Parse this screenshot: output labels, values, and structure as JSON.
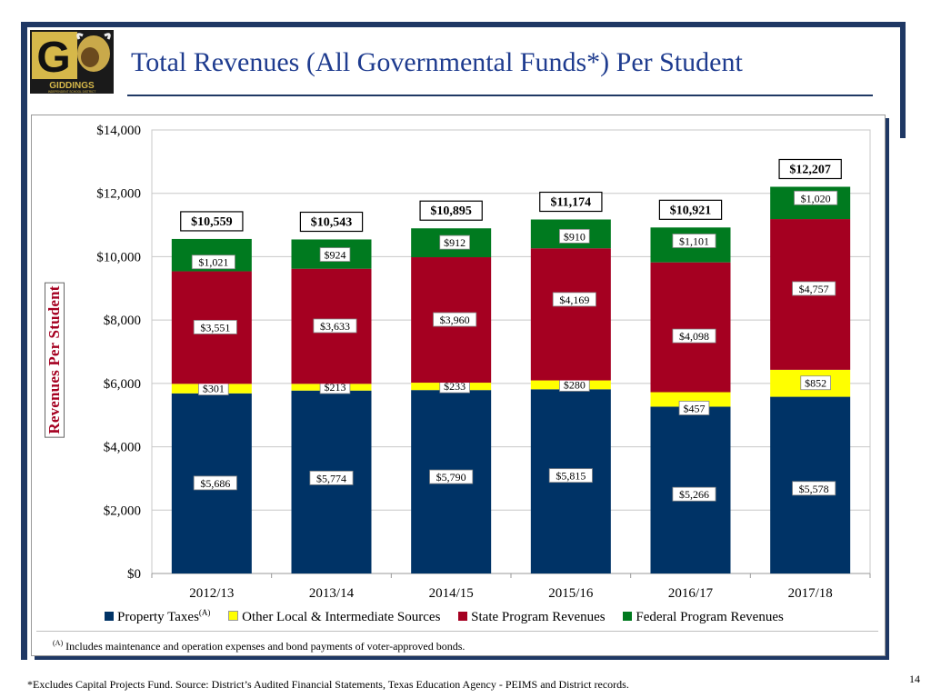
{
  "header": {
    "title": "Total Revenues (All Governmental Funds*) Per Student",
    "logo_text": "GIDDINGS",
    "logo_subtext": "INDEPENDENT SCHOOL DISTRICT",
    "logo_letter": "G"
  },
  "colors": {
    "navy": "#003366",
    "yellow": "#ffff00",
    "crimson": "#a50021",
    "green": "#007a1f",
    "frame": "#1f3864",
    "title": "#1f3c8f"
  },
  "chart_data": {
    "type": "bar",
    "stacked": true,
    "title": "Total Revenues (All Governmental Funds*) Per Student",
    "xlabel": "",
    "ylabel": "Revenues Per Student",
    "ylim": [
      0,
      14000
    ],
    "yticks": [
      0,
      2000,
      4000,
      6000,
      8000,
      10000,
      12000,
      14000
    ],
    "ytick_labels": [
      "$0",
      "$2,000",
      "$4,000",
      "$6,000",
      "$8,000",
      "$10,000",
      "$12,000",
      "$14,000"
    ],
    "grid": "horizontal",
    "legend_position": "bottom",
    "categories": [
      "2012/13",
      "2013/14",
      "2014/15",
      "2015/16",
      "2016/17",
      "2017/18"
    ],
    "series": [
      {
        "name": "Property Taxes",
        "name_sup": "(A)",
        "color": "#003366",
        "values": [
          5686,
          5774,
          5790,
          5815,
          5266,
          5578
        ],
        "labels": [
          "$5,686",
          "$5,774",
          "$5,790",
          "$5,815",
          "$5,266",
          "$5,578"
        ]
      },
      {
        "name": "Other Local & Intermediate Sources",
        "color": "#ffff00",
        "values": [
          301,
          213,
          233,
          280,
          457,
          852
        ],
        "labels": [
          "$301",
          "$213",
          "$233",
          "$280",
          "$457",
          "$852"
        ]
      },
      {
        "name": "State Program Revenues",
        "color": "#a50021",
        "values": [
          3551,
          3633,
          3960,
          4169,
          4098,
          4757
        ],
        "labels": [
          "$3,551",
          "$3,633",
          "$3,960",
          "$4,169",
          "$4,098",
          "$4,757"
        ]
      },
      {
        "name": "Federal Program Revenues",
        "color": "#007a1f",
        "values": [
          1021,
          924,
          912,
          910,
          1101,
          1020
        ],
        "labels": [
          "$1,021",
          "$924",
          "$912",
          "$910",
          "$1,101",
          "$1,020"
        ]
      }
    ],
    "totals": [
      10559,
      10543,
      10895,
      11174,
      10921,
      12207
    ],
    "total_labels": [
      "$10,559",
      "$10,543",
      "$10,895",
      "$11,174",
      "$10,921",
      "$12,207"
    ]
  },
  "notes": {
    "note_marker": "(A)",
    "note_text": "Includes maintenance and operation expenses and bond payments of voter-approved bonds.",
    "footnote": "*Excludes Capital Projects Fund. Source: District’s Audited Financial Statements, Texas Education Agency - PEIMS and District records.",
    "page_number": "14"
  }
}
